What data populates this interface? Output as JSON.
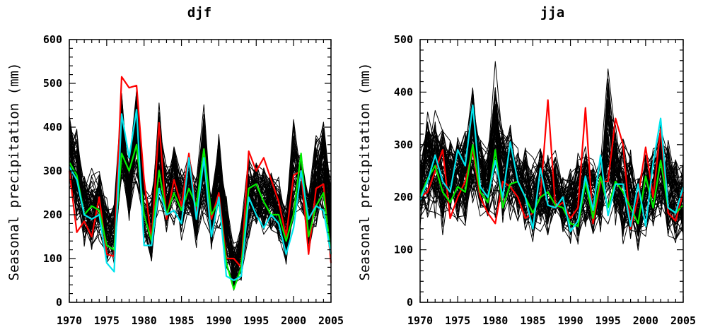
{
  "chart_data": [
    {
      "type": "line",
      "title": "djf",
      "xlabel": "",
      "ylabel": "Seasonal precipitation (mm)",
      "xlim": [
        1970,
        2005
      ],
      "ylim": [
        0,
        600
      ],
      "x_ticks": [
        1970,
        1975,
        1980,
        1985,
        1990,
        1995,
        2000,
        2005
      ],
      "y_ticks": [
        0,
        100,
        200,
        300,
        400,
        500,
        600
      ],
      "x": [
        1970,
        1971,
        1972,
        1973,
        1974,
        1975,
        1976,
        1977,
        1978,
        1979,
        1980,
        1981,
        1982,
        1983,
        1984,
        1985,
        1986,
        1987,
        1988,
        1989,
        1990,
        1991,
        1992,
        1993,
        1994,
        1995,
        1996,
        1997,
        1998,
        1999,
        2000,
        2001,
        2002,
        2003,
        2004,
        2005
      ],
      "ensemble": {
        "color": "#000000",
        "members": 60,
        "min": [
          240,
          150,
          120,
          100,
          130,
          80,
          70,
          230,
          180,
          260,
          120,
          80,
          200,
          140,
          170,
          140,
          180,
          110,
          170,
          100,
          150,
          60,
          20,
          40,
          130,
          160,
          140,
          150,
          120,
          80,
          150,
          190,
          110,
          140,
          170,
          70
        ],
        "max": [
          430,
          420,
          300,
          320,
          310,
          260,
          240,
          490,
          330,
          510,
          300,
          260,
          470,
          330,
          380,
          320,
          350,
          290,
          460,
          250,
          410,
          250,
          140,
          190,
          350,
          330,
          320,
          310,
          300,
          230,
          430,
          350,
          270,
          400,
          420,
          300
        ]
      },
      "series": [
        {
          "color": "#ff0000",
          "values": [
            300,
            160,
            185,
            150,
            240,
            110,
            105,
            515,
            490,
            495,
            280,
            140,
            410,
            190,
            280,
            220,
            340,
            200,
            350,
            190,
            250,
            100,
            100,
            80,
            345,
            300,
            330,
            280,
            230,
            150,
            290,
            300,
            110,
            260,
            270,
            90
          ]
        },
        {
          "color": "#00ee00",
          "values": [
            320,
            290,
            200,
            220,
            210,
            130,
            120,
            340,
            300,
            360,
            200,
            140,
            300,
            200,
            250,
            210,
            260,
            220,
            350,
            200,
            230,
            90,
            30,
            80,
            260,
            270,
            230,
            200,
            200,
            140,
            200,
            340,
            150,
            220,
            250,
            110
          ]
        },
        {
          "color": "#00e5ee",
          "values": [
            310,
            280,
            200,
            190,
            200,
            90,
            70,
            430,
            330,
            440,
            130,
            130,
            260,
            200,
            210,
            180,
            330,
            190,
            330,
            150,
            240,
            60,
            50,
            60,
            240,
            200,
            170,
            200,
            180,
            110,
            170,
            300,
            190,
            220,
            210,
            110
          ]
        }
      ]
    },
    {
      "type": "line",
      "title": "jja",
      "xlabel": "",
      "ylabel": "Seasonal precipitation (mm)",
      "xlim": [
        1970,
        2005
      ],
      "ylim": [
        0,
        500
      ],
      "x_ticks": [
        1970,
        1975,
        1980,
        1985,
        1990,
        1995,
        2000,
        2005
      ],
      "y_ticks": [
        0,
        100,
        200,
        300,
        400,
        500
      ],
      "x": [
        1970,
        1971,
        1972,
        1973,
        1974,
        1975,
        1976,
        1977,
        1978,
        1979,
        1980,
        1981,
        1982,
        1983,
        1984,
        1985,
        1986,
        1987,
        1988,
        1989,
        1990,
        1991,
        1992,
        1993,
        1994,
        1995,
        1996,
        1997,
        1998,
        1999,
        2000,
        2001,
        2002,
        2003,
        2004,
        2005
      ],
      "ensemble": {
        "color": "#000000",
        "members": 60,
        "min": [
          140,
          150,
          130,
          120,
          150,
          140,
          130,
          170,
          160,
          140,
          150,
          130,
          150,
          140,
          120,
          100,
          130,
          110,
          150,
          110,
          100,
          90,
          140,
          100,
          120,
          130,
          140,
          100,
          110,
          90,
          110,
          130,
          150,
          110,
          100,
          110
        ],
        "max": [
          300,
          400,
          370,
          350,
          320,
          340,
          350,
          450,
          330,
          300,
          460,
          340,
          350,
          300,
          310,
          280,
          310,
          290,
          300,
          250,
          270,
          290,
          310,
          290,
          280,
          460,
          340,
          330,
          300,
          260,
          310,
          310,
          350,
          320,
          290,
          280
        ]
      },
      "series": [
        {
          "color": "#ff0000",
          "values": [
            200,
            210,
            250,
            290,
            160,
            200,
            230,
            290,
            200,
            170,
            150,
            230,
            220,
            200,
            160,
            170,
            200,
            385,
            180,
            190,
            160,
            180,
            370,
            150,
            230,
            230,
            350,
            300,
            140,
            200,
            295,
            200,
            330,
            170,
            155,
            210
          ]
        },
        {
          "color": "#00ee00",
          "values": [
            200,
            235,
            260,
            210,
            190,
            220,
            210,
            300,
            210,
            190,
            290,
            180,
            225,
            230,
            200,
            170,
            200,
            210,
            185,
            180,
            150,
            145,
            230,
            160,
            240,
            180,
            230,
            210,
            180,
            150,
            240,
            180,
            270,
            180,
            170,
            185
          ]
        },
        {
          "color": "#00e5ee",
          "values": [
            195,
            230,
            280,
            230,
            210,
            290,
            260,
            375,
            220,
            200,
            270,
            200,
            305,
            230,
            200,
            140,
            255,
            185,
            180,
            200,
            135,
            155,
            240,
            175,
            280,
            165,
            225,
            225,
            145,
            225,
            145,
            265,
            350,
            180,
            170,
            220
          ]
        }
      ]
    }
  ]
}
